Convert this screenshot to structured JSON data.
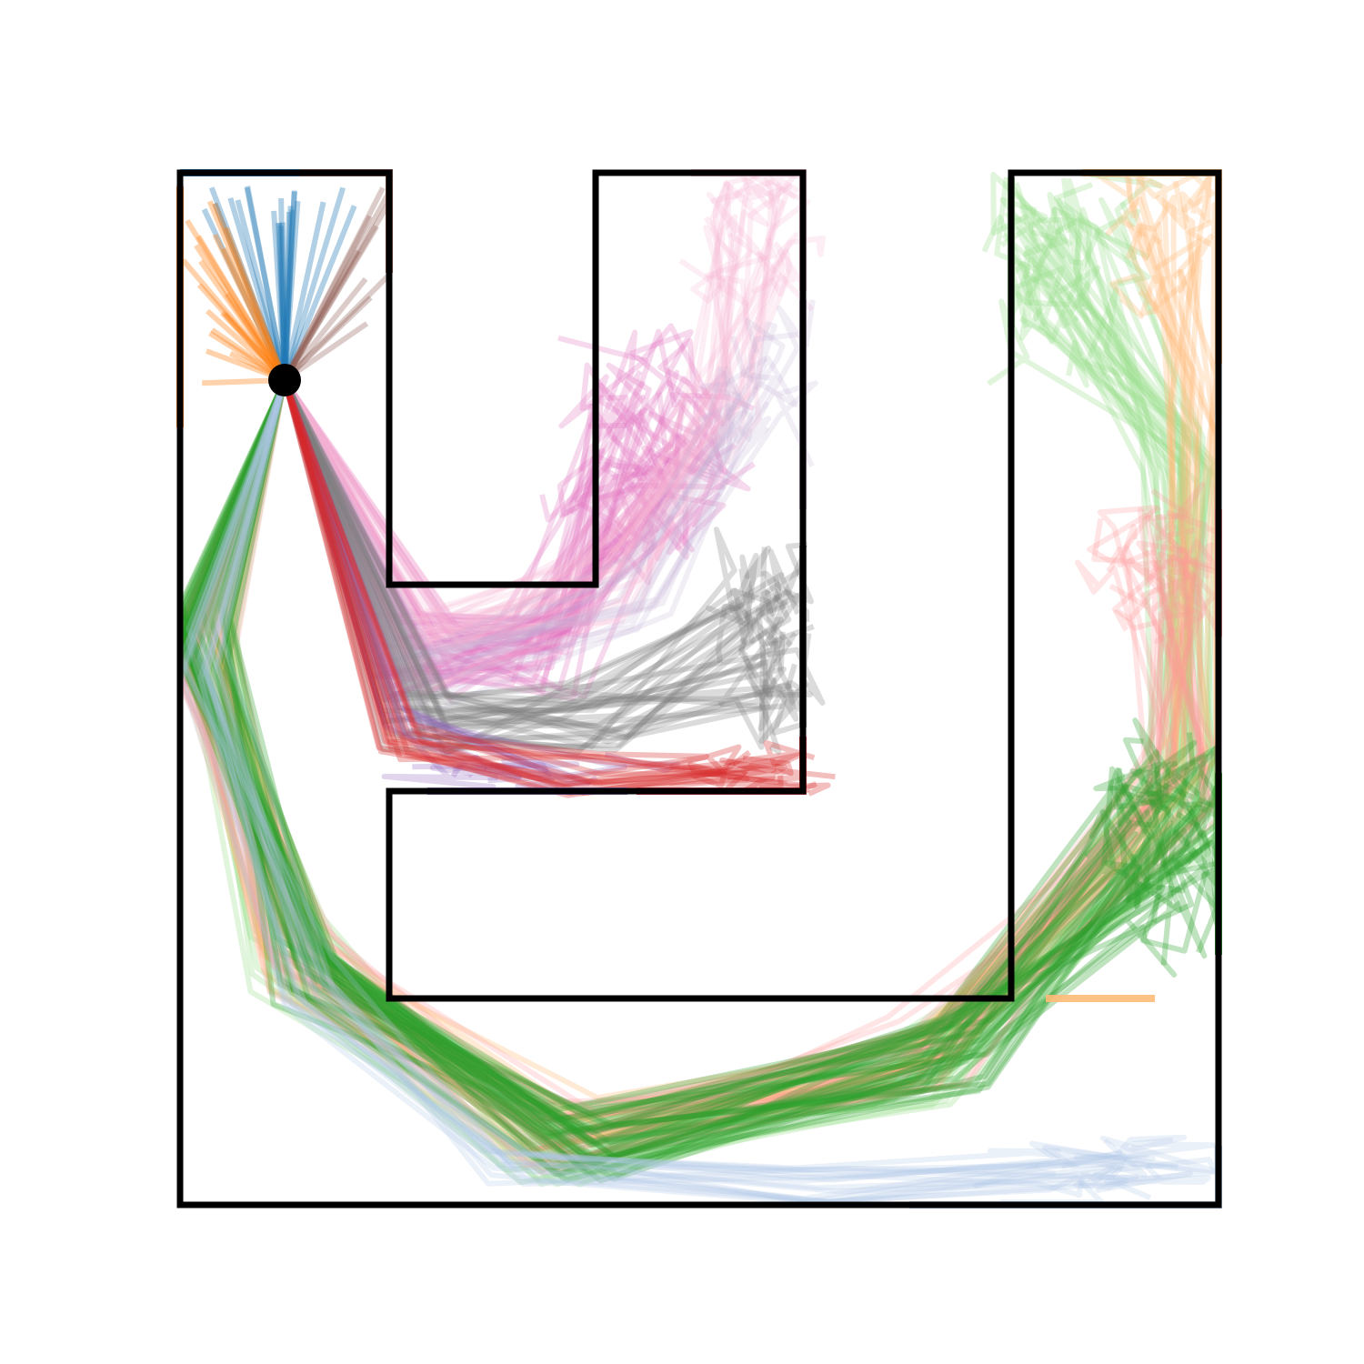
{
  "maze": {
    "wall_color": "#000000",
    "start_marker_color": "#000000",
    "goal_colors": {
      "blue": "#1f77b4",
      "orange": "#ff7f0e",
      "brown": "#8c564b",
      "pink": "#f7b6d2",
      "magenta": "#e377c2",
      "lavender": "#c5b0d5",
      "gray": "#7f7f7f",
      "purple": "#9467bd",
      "red": "#d62728",
      "light-green": "#98df8a",
      "light-orange": "#ffbb78",
      "salmon": "#ff9896",
      "green": "#2ca02c",
      "light-blue": "#aec7e8"
    }
  }
}
